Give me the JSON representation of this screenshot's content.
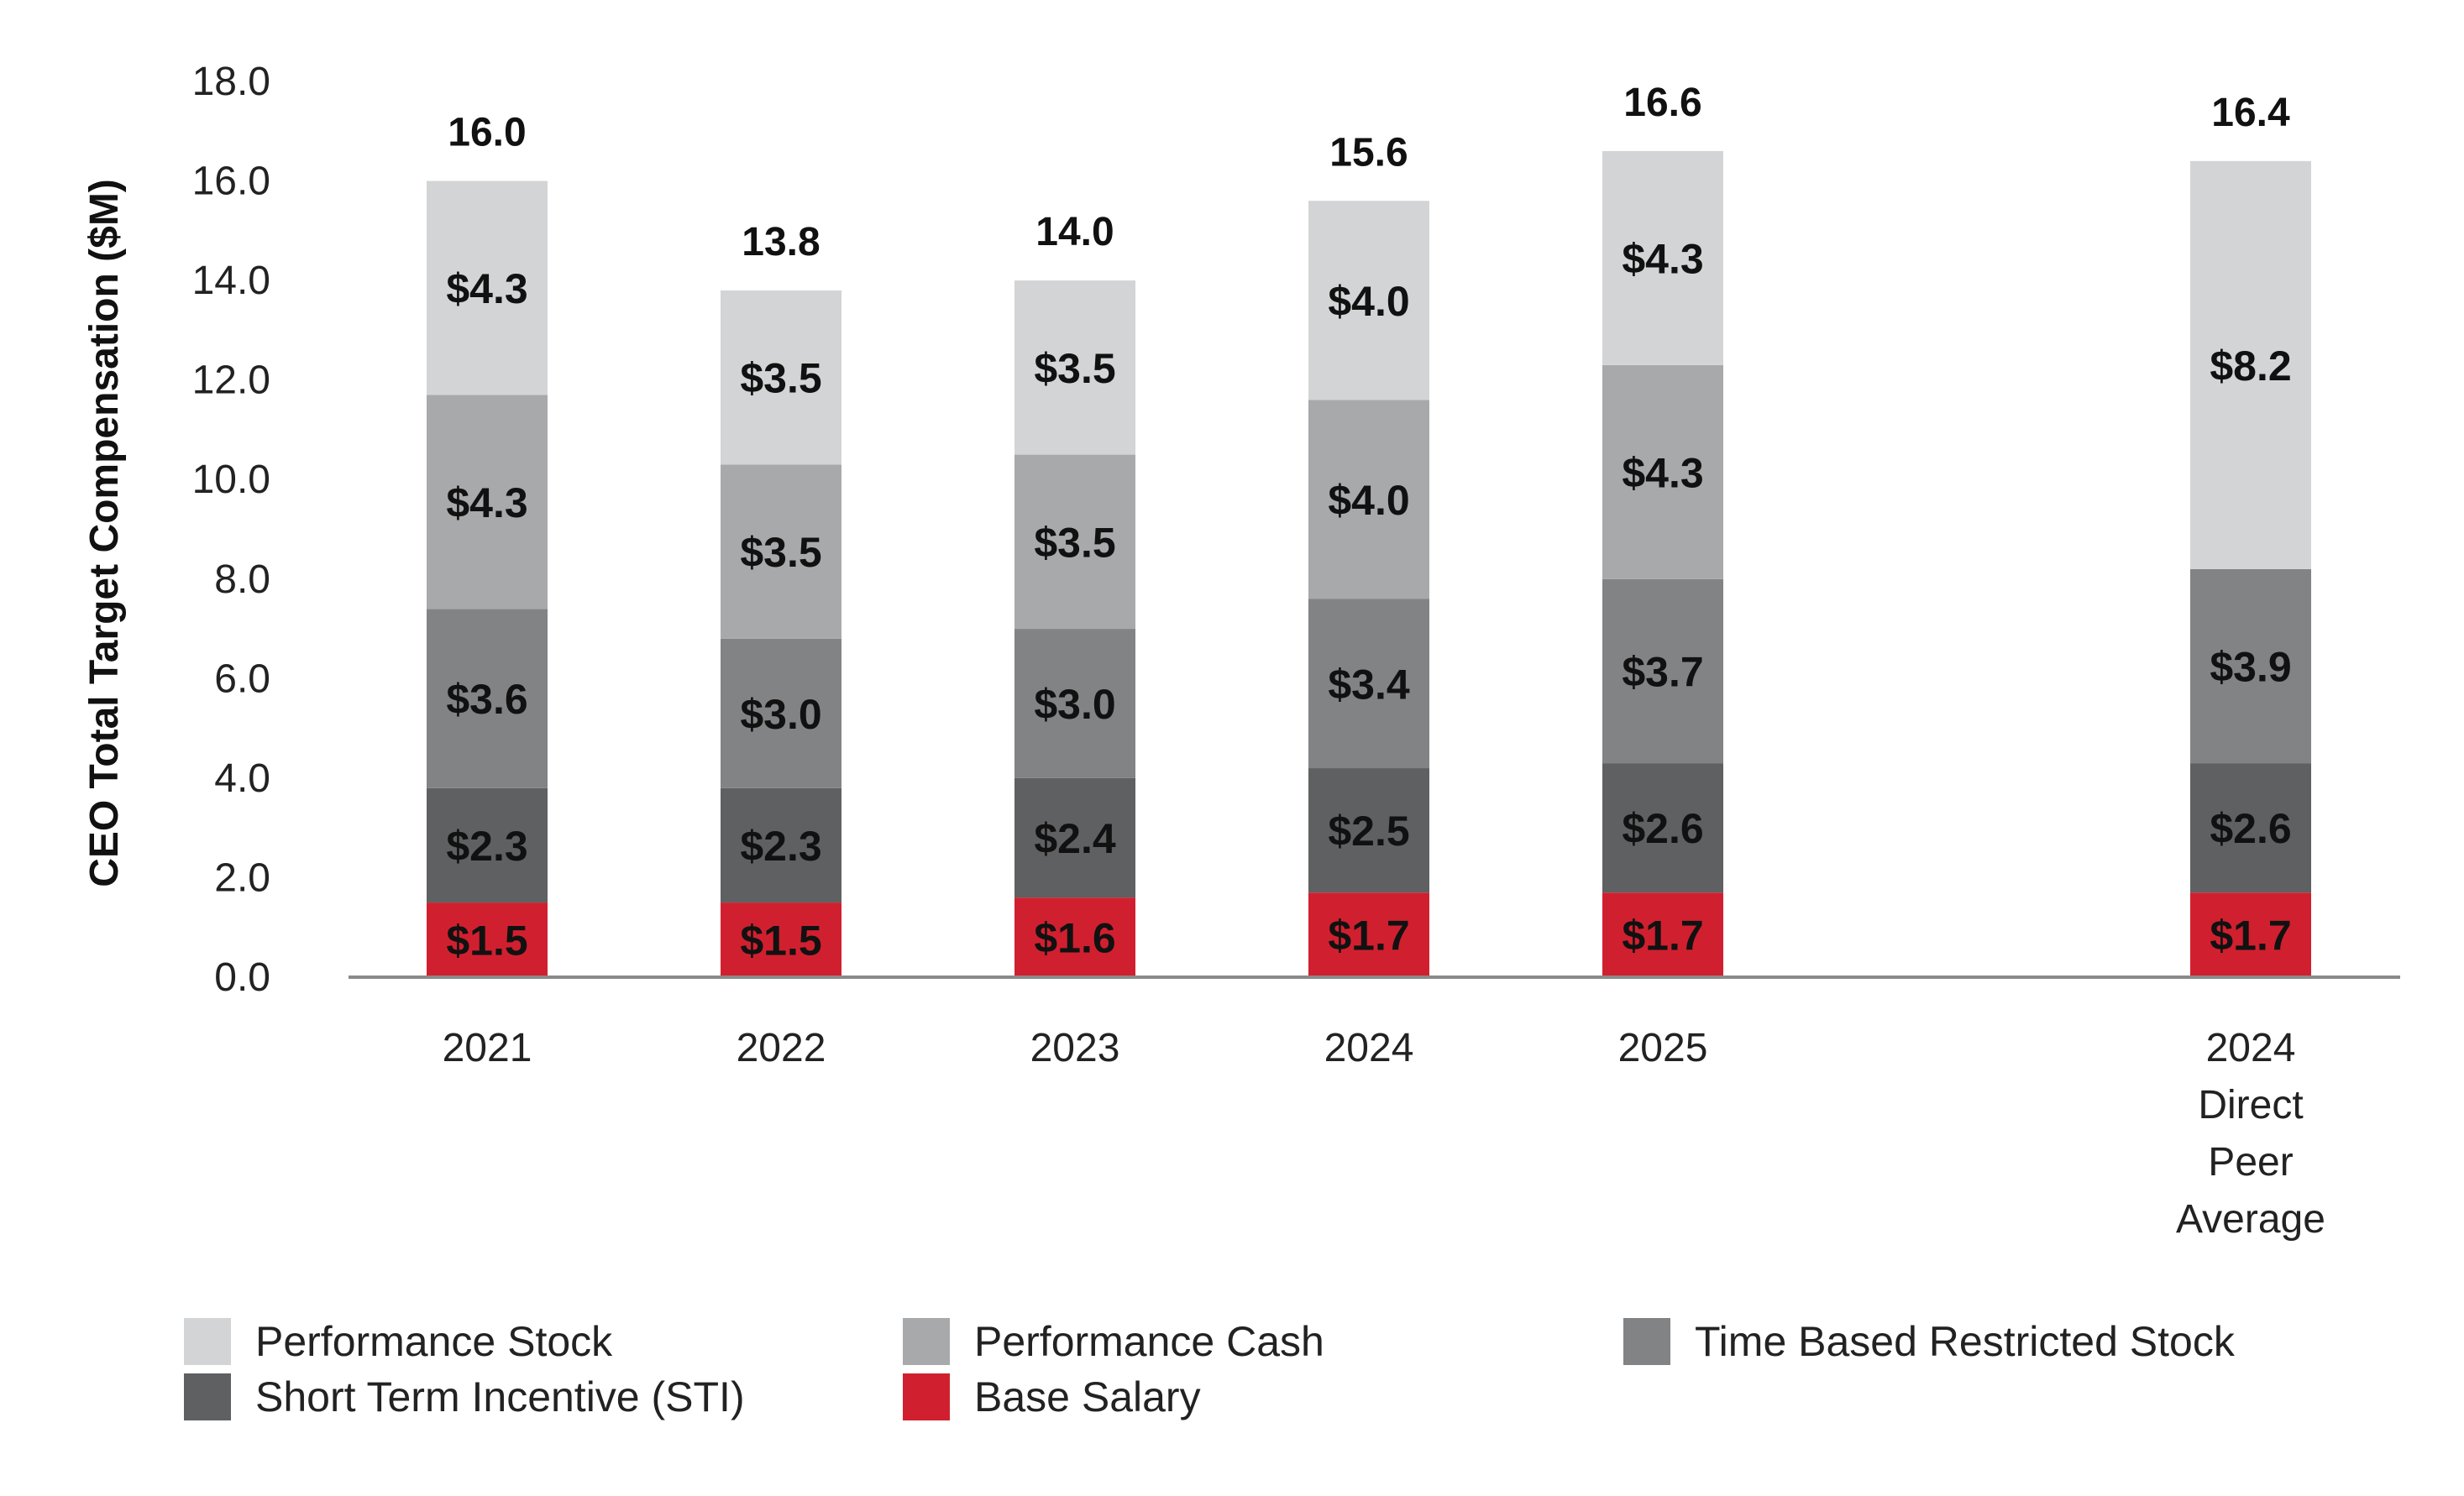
{
  "chart_data": {
    "type": "bar",
    "stacked": true,
    "categories": [
      [
        "2021"
      ],
      [
        "2022"
      ],
      [
        "2023"
      ],
      [
        "2024"
      ],
      [
        "2025"
      ],
      [
        "2024",
        "Direct",
        "Peer",
        "Average"
      ]
    ],
    "ylabel": "CEO Total Target Compensation ($M)",
    "ylim": [
      0,
      18
    ],
    "yticks": [
      0,
      2,
      4,
      6,
      8,
      10,
      12,
      14,
      16,
      18
    ],
    "ytick_labels": [
      "0.0",
      "2.0",
      "4.0",
      "6.0",
      "8.0",
      "10.0",
      "12.0",
      "14.0",
      "16.0",
      "18.0"
    ],
    "totals": [
      16.0,
      13.8,
      14.0,
      15.6,
      16.6,
      16.4
    ],
    "total_labels": [
      "16.0",
      "13.8",
      "14.0",
      "15.6",
      "16.6",
      "16.4"
    ],
    "series": [
      {
        "name": "Base Salary",
        "color": "#d0202f",
        "values": [
          1.5,
          1.5,
          1.6,
          1.7,
          1.7,
          1.7
        ],
        "labels": [
          "$1.5",
          "$1.5",
          "$1.6",
          "$1.7",
          "$1.7",
          "$1.7"
        ]
      },
      {
        "name": "Short Term Incentive (STI)",
        "color": "#5f6062",
        "values": [
          2.3,
          2.3,
          2.4,
          2.5,
          2.6,
          2.6
        ],
        "labels": [
          "$2.3",
          "$2.3",
          "$2.4",
          "$2.5",
          "$2.6",
          "$2.6"
        ]
      },
      {
        "name": "Time Based Restricted Stock",
        "color": "#828385",
        "values": [
          3.6,
          3.0,
          3.0,
          3.4,
          3.7,
          3.9
        ],
        "labels": [
          "$3.6",
          "$3.0",
          "$3.0",
          "$3.4",
          "$3.7",
          "$3.9"
        ]
      },
      {
        "name": "Performance Cash",
        "color": "#a8a9ab",
        "values": [
          4.3,
          3.5,
          3.5,
          4.0,
          4.3,
          null
        ],
        "labels": [
          "$4.3",
          "$3.5",
          "$3.5",
          "$4.0",
          "$4.3",
          null
        ]
      },
      {
        "name": "Performance Stock",
        "color": "#d3d4d5",
        "values": [
          4.3,
          3.5,
          3.5,
          4.0,
          4.3,
          8.2
        ],
        "labels": [
          "$4.3",
          "$3.5",
          "$3.5",
          "$4.0",
          "$4.3",
          "$8.2"
        ]
      }
    ],
    "legend": {
      "placement": "bottom",
      "order": [
        "Performance Stock",
        "Performance Cash",
        "Time Based Restricted Stock",
        "Short Term Incentive (STI)",
        "Base Salary"
      ]
    },
    "grid": false
  }
}
